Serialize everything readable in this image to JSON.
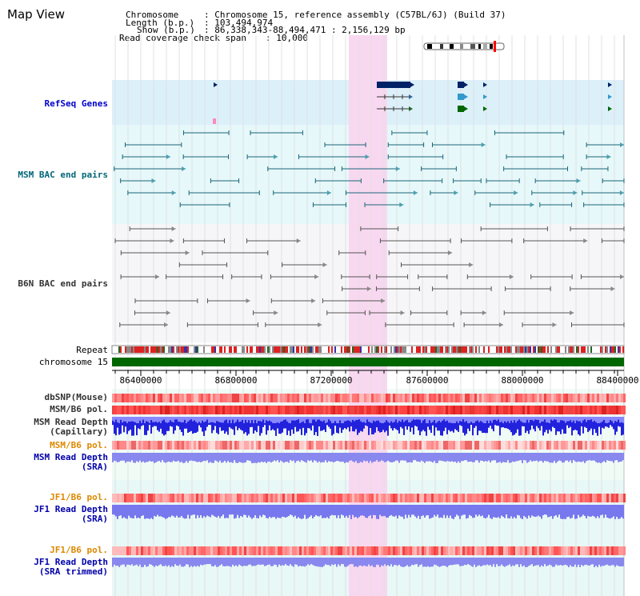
{
  "view": {
    "title": "Map View"
  },
  "header": {
    "chromosome_label": "Chromosome",
    "chromosome_value": ": Chromosome 15, reference assembly (C57BL/6J) (Build 37)",
    "length_label": "Length (b.p.)",
    "length_value": ": 103,494,974",
    "show_label": "Show (b.p.)",
    "show_value": ": 86,338,343-88,494,471 : 2,156,129 bp",
    "coverage_label": "Read coverage check span",
    "coverage_value": ": 10,000"
  },
  "tracks": {
    "refseq": "RefSeq Genes",
    "msm_bac": "MSM BAC end pairs",
    "b6n_bac": "B6N BAC end pairs",
    "repeat": "Repeat",
    "chromosome": "chromosome 15",
    "dbsnp": "dbSNP(Mouse)",
    "msm_b6_pol_1": "MSM/B6 pol.",
    "msm_depth_cap_1": "MSM Read Depth",
    "msm_depth_cap_2": "(Capillary)",
    "msm_b6_pol_2": "MSM/B6 pol.",
    "msm_depth_sra_1": "MSM Read Depth",
    "msm_depth_sra_2": "(SRA)",
    "jf1_b6_pol_1": "JF1/B6 pol.",
    "jf1_depth_sra_1": "JF1 Read Depth",
    "jf1_depth_sra_2": "(SRA)",
    "jf1_b6_pol_2": "JF1/B6 pol.",
    "jf1_depth_trim_1": "JF1 Read Depth",
    "jf1_depth_trim_2": "(SRA trimmed)"
  },
  "axis": {
    "ticks": [
      "86400000",
      "86800000",
      "87200000",
      "87600000",
      "88000000",
      "88400000"
    ]
  },
  "colors": {
    "refseq_label": "#0000cc",
    "msm_label": "#006677",
    "b6n_label": "#333333",
    "pol_label": "#dd8800",
    "depth_label": "#0000aa",
    "highlight": "#f8d8f0",
    "chromosome_bar": "#006600"
  }
}
